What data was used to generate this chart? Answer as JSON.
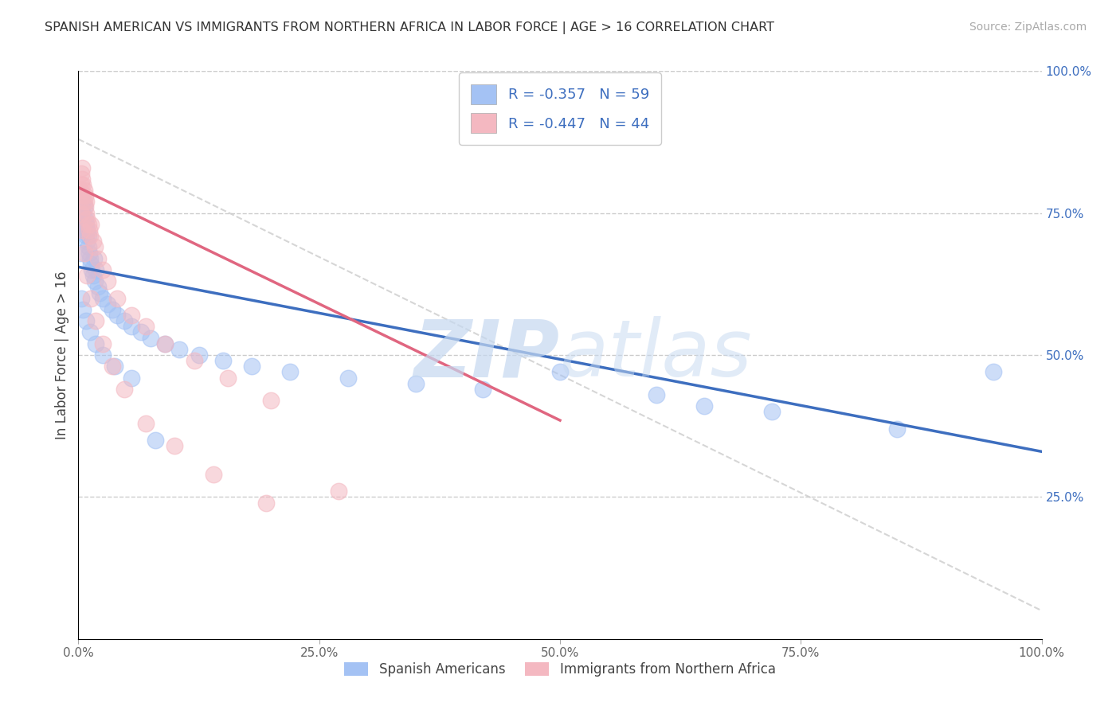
{
  "title": "SPANISH AMERICAN VS IMMIGRANTS FROM NORTHERN AFRICA IN LABOR FORCE | AGE > 16 CORRELATION CHART",
  "source": "Source: ZipAtlas.com",
  "ylabel": "In Labor Force | Age > 16",
  "legend_label1": "Spanish Americans",
  "legend_label2": "Immigrants from Northern Africa",
  "R1": -0.357,
  "N1": 59,
  "R2": -0.447,
  "N2": 44,
  "color_blue": "#a4c2f4",
  "color_pink": "#f4b8c1",
  "color_blue_line": "#3d6ebf",
  "color_pink_line": "#e06680",
  "color_diagonal": "#cccccc",
  "blue_line_x0": 0.0,
  "blue_line_y0": 0.655,
  "blue_line_x1": 1.0,
  "blue_line_y1": 0.33,
  "pink_line_x0": 0.0,
  "pink_line_y0": 0.795,
  "pink_line_x1": 0.5,
  "pink_line_y1": 0.385,
  "blue_x": [
    0.002,
    0.003,
    0.003,
    0.004,
    0.004,
    0.005,
    0.005,
    0.006,
    0.006,
    0.007,
    0.007,
    0.008,
    0.008,
    0.009,
    0.009,
    0.01,
    0.01,
    0.011,
    0.012,
    0.013,
    0.014,
    0.015,
    0.016,
    0.017,
    0.018,
    0.02,
    0.022,
    0.025,
    0.03,
    0.035,
    0.04,
    0.048,
    0.055,
    0.065,
    0.075,
    0.09,
    0.105,
    0.125,
    0.15,
    0.18,
    0.22,
    0.28,
    0.35,
    0.42,
    0.5,
    0.6,
    0.65,
    0.72,
    0.85,
    0.95,
    0.003,
    0.005,
    0.008,
    0.012,
    0.018,
    0.025,
    0.038,
    0.055,
    0.08
  ],
  "blue_y": [
    0.68,
    0.72,
    0.74,
    0.76,
    0.78,
    0.75,
    0.77,
    0.73,
    0.76,
    0.72,
    0.74,
    0.71,
    0.73,
    0.7,
    0.72,
    0.69,
    0.71,
    0.68,
    0.67,
    0.66,
    0.65,
    0.64,
    0.67,
    0.63,
    0.65,
    0.62,
    0.61,
    0.6,
    0.59,
    0.58,
    0.57,
    0.56,
    0.55,
    0.54,
    0.53,
    0.52,
    0.51,
    0.5,
    0.49,
    0.48,
    0.47,
    0.46,
    0.45,
    0.44,
    0.47,
    0.43,
    0.41,
    0.4,
    0.37,
    0.47,
    0.6,
    0.58,
    0.56,
    0.54,
    0.52,
    0.5,
    0.48,
    0.46,
    0.35
  ],
  "pink_x": [
    0.002,
    0.003,
    0.003,
    0.004,
    0.004,
    0.005,
    0.005,
    0.006,
    0.006,
    0.007,
    0.007,
    0.008,
    0.008,
    0.009,
    0.01,
    0.011,
    0.012,
    0.013,
    0.015,
    0.017,
    0.02,
    0.025,
    0.03,
    0.04,
    0.055,
    0.07,
    0.09,
    0.12,
    0.155,
    0.2,
    0.003,
    0.004,
    0.006,
    0.009,
    0.013,
    0.018,
    0.025,
    0.035,
    0.048,
    0.07,
    0.1,
    0.14,
    0.195,
    0.27
  ],
  "pink_y": [
    0.79,
    0.8,
    0.82,
    0.81,
    0.83,
    0.78,
    0.8,
    0.77,
    0.79,
    0.76,
    0.78,
    0.75,
    0.77,
    0.74,
    0.73,
    0.72,
    0.71,
    0.73,
    0.7,
    0.69,
    0.67,
    0.65,
    0.63,
    0.6,
    0.57,
    0.55,
    0.52,
    0.49,
    0.46,
    0.42,
    0.75,
    0.72,
    0.68,
    0.64,
    0.6,
    0.56,
    0.52,
    0.48,
    0.44,
    0.38,
    0.34,
    0.29,
    0.24,
    0.26
  ],
  "xlim": [
    0.0,
    1.0
  ],
  "ylim": [
    0.0,
    1.0
  ],
  "xticks": [
    0.0,
    0.25,
    0.5,
    0.75,
    1.0
  ],
  "xtick_labels": [
    "0.0%",
    "25.0%",
    "50.0%",
    "75.0%",
    "100.0%"
  ],
  "yticks_right": [
    0.25,
    0.5,
    0.75,
    1.0
  ],
  "ytick_labels_right": [
    "25.0%",
    "50.0%",
    "75.0%",
    "100.0%"
  ],
  "watermark_zip": "ZIP",
  "watermark_atlas": "atlas",
  "bg_color": "#ffffff",
  "grid_color": "#cccccc"
}
